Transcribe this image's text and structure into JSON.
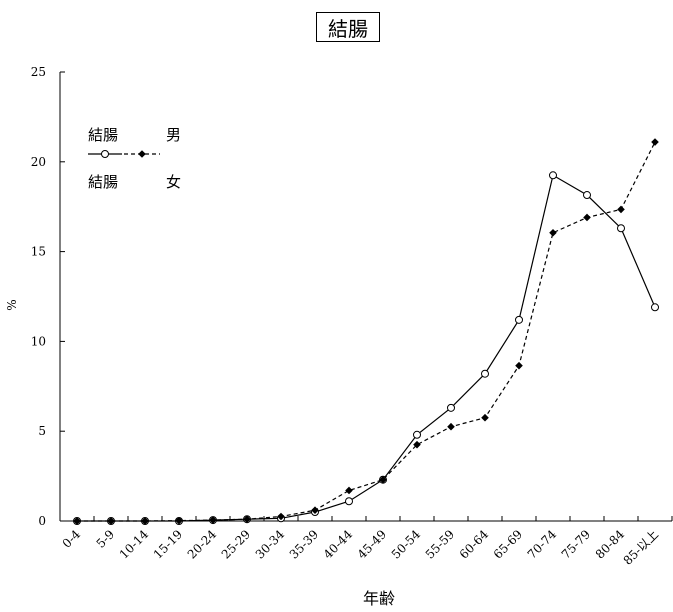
{
  "chart_data": {
    "type": "line",
    "title": "結腸",
    "xlabel": "年齢",
    "ylabel": "%",
    "ylim": [
      0,
      25
    ],
    "yticks": [
      0,
      5,
      10,
      15,
      20,
      25
    ],
    "grid": false,
    "legend_position": "top-left",
    "categories": [
      "0-4",
      "5-9",
      "10-14",
      "15-19",
      "20-24",
      "25-29",
      "30-34",
      "35-39",
      "40-44",
      "45-49",
      "50-54",
      "55-59",
      "60-64",
      "65-69",
      "70-74",
      "75-79",
      "80-84",
      "85-以上"
    ],
    "series": [
      {
        "name": "結腸　男",
        "legend_label": "結腸",
        "legend_sex": "男",
        "style": "solid",
        "marker": "open-circle",
        "color": "#000000",
        "values": [
          0.0,
          0.0,
          0.0,
          0.0,
          0.05,
          0.1,
          0.15,
          0.5,
          1.1,
          2.3,
          4.8,
          6.3,
          8.2,
          11.2,
          19.25,
          18.15,
          16.3,
          11.9
        ]
      },
      {
        "name": "結腸　女",
        "legend_label": "結腸",
        "legend_sex": "女",
        "style": "dashed",
        "marker": "filled-diamond",
        "color": "#000000",
        "values": [
          0.0,
          0.0,
          0.0,
          0.02,
          0.05,
          0.1,
          0.25,
          0.6,
          1.7,
          2.3,
          4.25,
          5.25,
          5.75,
          8.65,
          16.05,
          16.9,
          17.35,
          21.1
        ]
      }
    ]
  }
}
